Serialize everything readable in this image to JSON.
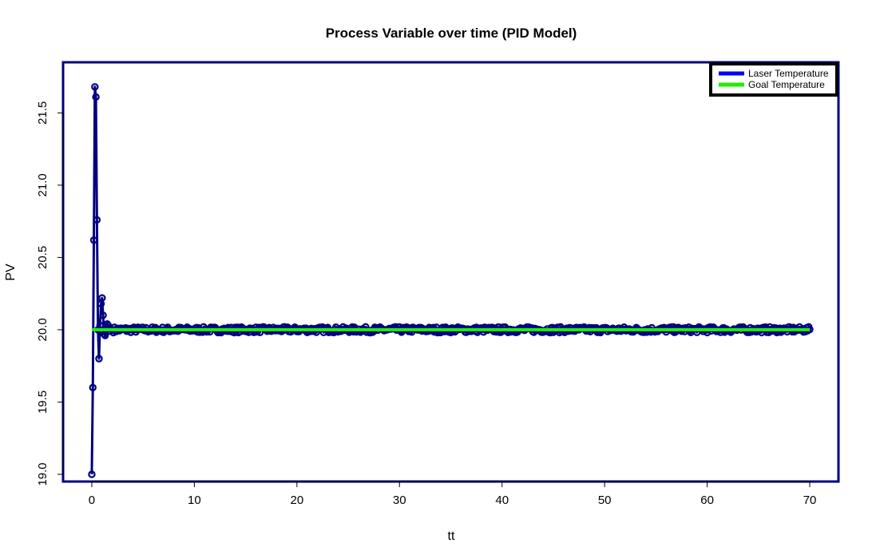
{
  "chart_data": {
    "type": "line",
    "title": "Process Variable over time (PID Model)",
    "xlabel": "tt",
    "ylabel": "PV",
    "xlim": [
      -2.8,
      72.8
    ],
    "ylim": [
      18.95,
      21.85
    ],
    "x_ticks": [
      0,
      10,
      20,
      30,
      40,
      50,
      60,
      70
    ],
    "y_ticks": [
      19.0,
      19.5,
      20.0,
      20.5,
      21.0,
      21.5
    ],
    "y_tick_labels": [
      "19.0",
      "19.5",
      "20.0",
      "20.5",
      "21.0",
      "21.5"
    ],
    "grid": false,
    "legend_position": "top-right",
    "series": [
      {
        "name": "Laser Temperature",
        "color": "#000080",
        "legend_color": "#0000ff",
        "marker": "open-circle",
        "points": [
          [
            0.0,
            19.0
          ],
          [
            0.1,
            19.6
          ],
          [
            0.2,
            20.62
          ],
          [
            0.3,
            21.68
          ],
          [
            0.4,
            21.61
          ],
          [
            0.5,
            20.76
          ],
          [
            0.6,
            20.0
          ],
          [
            0.7,
            19.8
          ],
          [
            0.8,
            20.03
          ],
          [
            0.9,
            20.18
          ],
          [
            1.0,
            20.22
          ],
          [
            1.1,
            20.1
          ],
          [
            1.2,
            19.97
          ],
          [
            1.3,
            19.96
          ],
          [
            1.4,
            20.0
          ],
          [
            1.5,
            20.04
          ],
          [
            1.6,
            20.03
          ],
          [
            1.7,
            20.01
          ],
          [
            1.8,
            19.99
          ],
          [
            2.0,
            20.0
          ]
        ],
        "steady_state": {
          "x_start": 2.0,
          "x_end": 70.0,
          "value": 20.0,
          "noise": 0.02
        }
      },
      {
        "name": "Goal Temperature",
        "color": "#22ee00",
        "legend_color": "#22ee00",
        "x": [
          0,
          70
        ],
        "values": [
          20.0,
          20.0
        ]
      }
    ]
  }
}
